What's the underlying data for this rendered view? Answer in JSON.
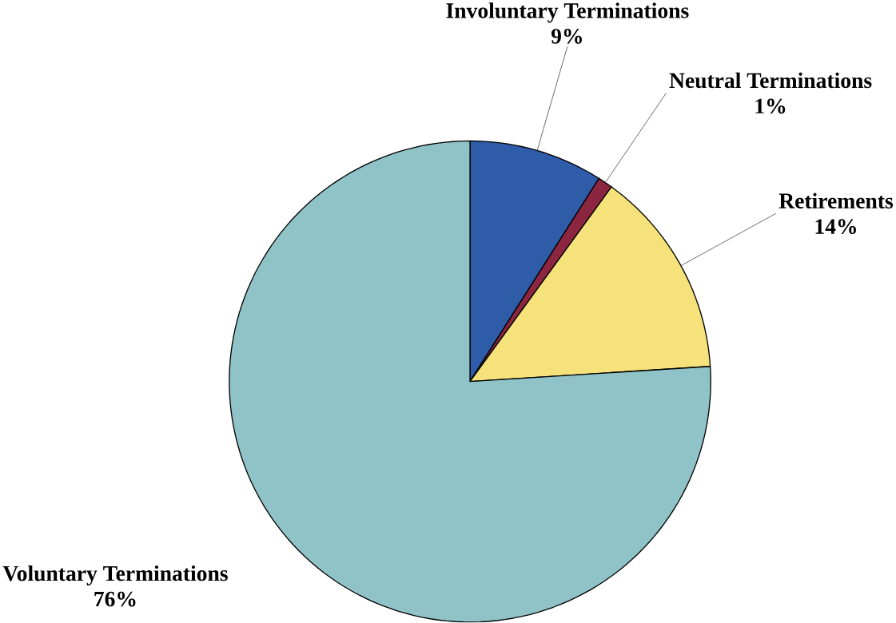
{
  "chart_data": {
    "type": "pie",
    "categories": [
      "Involuntary Terminations",
      "Neutral Terminations",
      "Retirements",
      "Voluntary Terminations"
    ],
    "values": [
      9,
      1,
      14,
      76
    ],
    "value_labels": [
      "9%",
      "1%",
      "14%",
      "76%"
    ],
    "colors": [
      "#2e5ca8",
      "#8b2540",
      "#f5e27a",
      "#8fc3c8"
    ]
  }
}
